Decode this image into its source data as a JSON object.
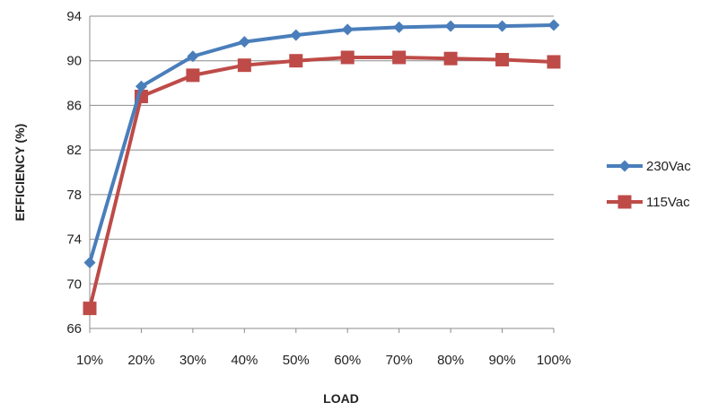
{
  "chart_data": {
    "type": "line",
    "title": "",
    "xlabel": "LOAD",
    "ylabel": "EFFICIENCY (%)",
    "categories": [
      "10%",
      "20%",
      "30%",
      "40%",
      "50%",
      "60%",
      "70%",
      "80%",
      "90%",
      "100%"
    ],
    "ylim": [
      66,
      94
    ],
    "yticks": [
      66,
      70,
      74,
      78,
      82,
      86,
      90,
      94
    ],
    "grid": true,
    "legend_position": "right",
    "series": [
      {
        "name": "230Vac",
        "color": "#4a7ebb",
        "marker": "diamond",
        "values": [
          71.9,
          87.7,
          90.4,
          91.7,
          92.3,
          92.8,
          93.0,
          93.1,
          93.1,
          93.2
        ]
      },
      {
        "name": "115Vac",
        "color": "#be4b48",
        "marker": "square",
        "values": [
          67.8,
          86.8,
          88.7,
          89.6,
          90.0,
          90.3,
          90.3,
          90.2,
          90.1,
          89.9
        ]
      }
    ]
  }
}
